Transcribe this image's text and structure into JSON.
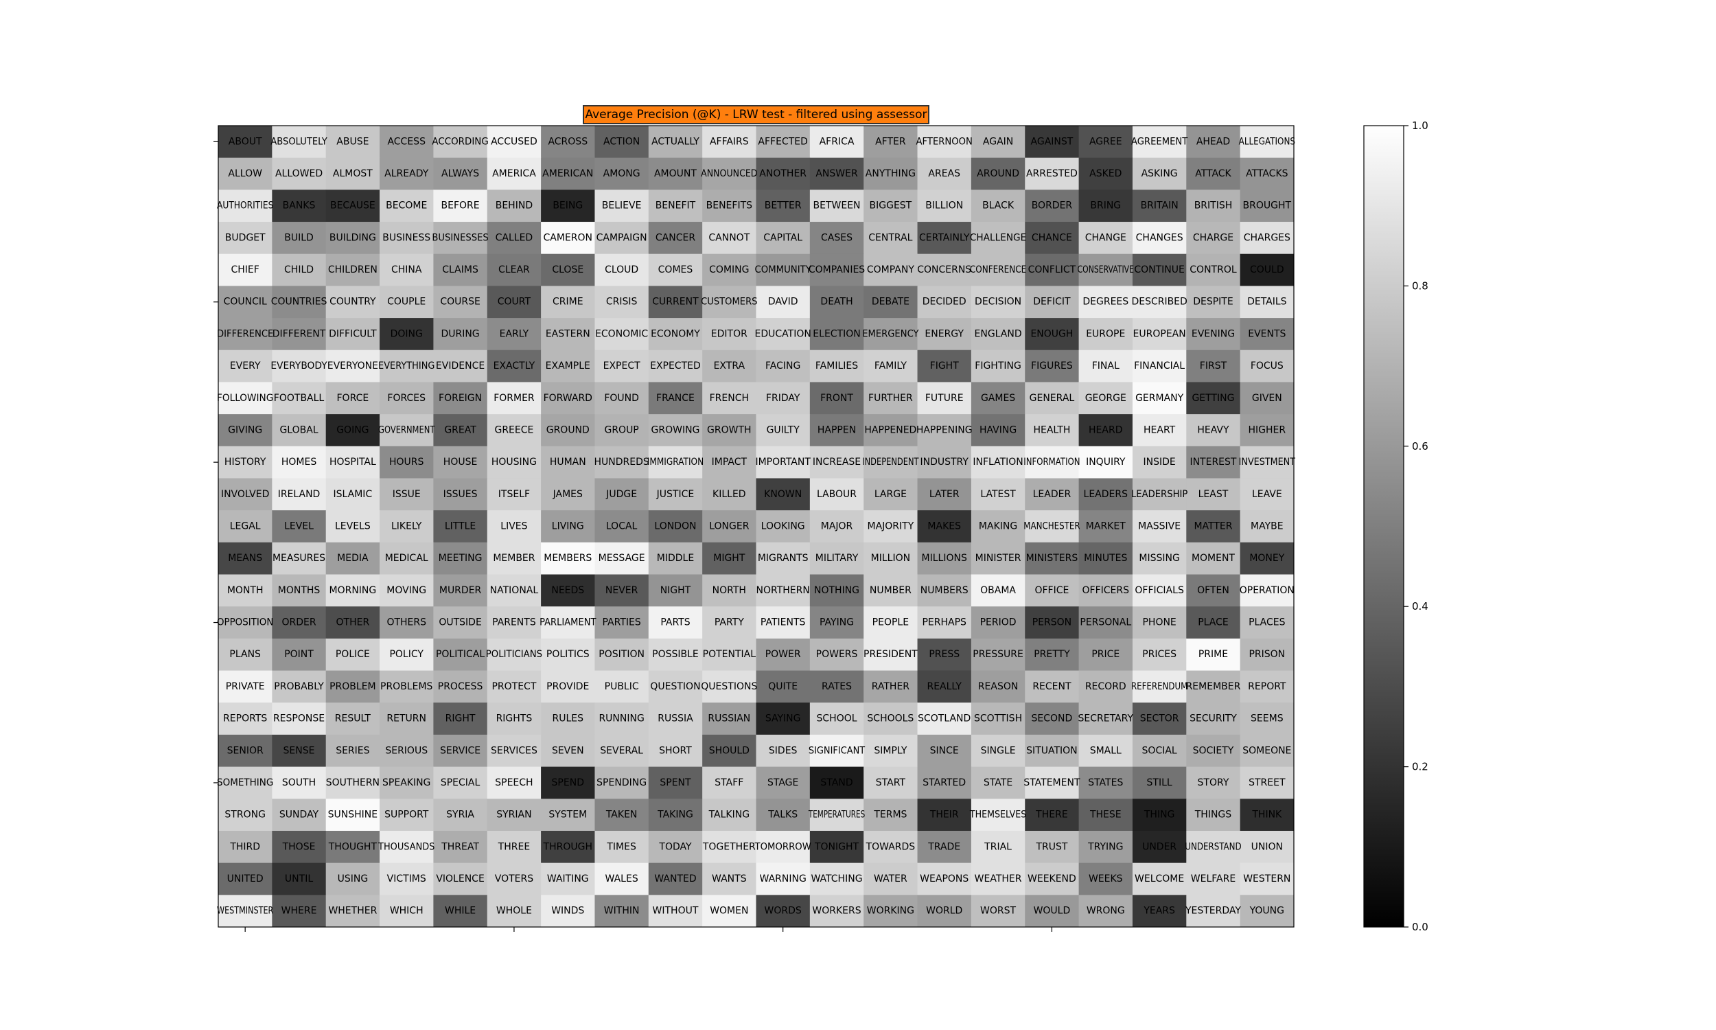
{
  "chart_data": {
    "type": "heatmap",
    "title": "Average Precision (@K) - LRW test - filtered using assessor",
    "title_background": "#ff7f0e",
    "colormap": "gray",
    "vmin": 0.0,
    "vmax": 1.0,
    "colorbar_ticks": [
      0.0,
      0.2,
      0.4,
      0.6,
      0.8,
      1.0
    ],
    "rows": 25,
    "cols": 20,
    "words": [
      "ABOUT",
      "ABSOLUTELY",
      "ABUSE",
      "ACCESS",
      "ACCORDING",
      "ACCUSED",
      "ACROSS",
      "ACTION",
      "ACTUALLY",
      "AFFAIRS",
      "AFFECTED",
      "AFRICA",
      "AFTER",
      "AFTERNOON",
      "AGAIN",
      "AGAINST",
      "AGREE",
      "AGREEMENT",
      "AHEAD",
      "ALLEGATIONS",
      "ALLOW",
      "ALLOWED",
      "ALMOST",
      "ALREADY",
      "ALWAYS",
      "AMERICA",
      "AMERICAN",
      "AMONG",
      "AMOUNT",
      "ANNOUNCED",
      "ANOTHER",
      "ANSWER",
      "ANYTHING",
      "AREAS",
      "AROUND",
      "ARRESTED",
      "ASKED",
      "ASKING",
      "ATTACK",
      "ATTACKS",
      "AUTHORITIES",
      "BANKS",
      "BECAUSE",
      "BECOME",
      "BEFORE",
      "BEHIND",
      "BEING",
      "BELIEVE",
      "BENEFIT",
      "BENEFITS",
      "BETTER",
      "BETWEEN",
      "BIGGEST",
      "BILLION",
      "BLACK",
      "BORDER",
      "BRING",
      "BRITAIN",
      "BRITISH",
      "BROUGHT",
      "BUDGET",
      "BUILD",
      "BUILDING",
      "BUSINESS",
      "BUSINESSES",
      "CALLED",
      "CAMERON",
      "CAMPAIGN",
      "CANCER",
      "CANNOT",
      "CAPITAL",
      "CASES",
      "CENTRAL",
      "CERTAINLY",
      "CHALLENGE",
      "CHANCE",
      "CHANGE",
      "CHANGES",
      "CHARGE",
      "CHARGES",
      "CHIEF",
      "CHILD",
      "CHILDREN",
      "CHINA",
      "CLAIMS",
      "CLEAR",
      "CLOSE",
      "CLOUD",
      "COMES",
      "COMING",
      "COMMUNITY",
      "COMPANIES",
      "COMPANY",
      "CONCERNS",
      "CONFERENCE",
      "CONFLICT",
      "CONSERVATIVE",
      "CONTINUE",
      "CONTROL",
      "COULD",
      "COUNCIL",
      "COUNTRIES",
      "COUNTRY",
      "COUPLE",
      "COURSE",
      "COURT",
      "CRIME",
      "CRISIS",
      "CURRENT",
      "CUSTOMERS",
      "DAVID",
      "DEATH",
      "DEBATE",
      "DECIDED",
      "DECISION",
      "DEFICIT",
      "DEGREES",
      "DESCRIBED",
      "DESPITE",
      "DETAILS",
      "DIFFERENCE",
      "DIFFERENT",
      "DIFFICULT",
      "DOING",
      "DURING",
      "EARLY",
      "EASTERN",
      "ECONOMIC",
      "ECONOMY",
      "EDITOR",
      "EDUCATION",
      "ELECTION",
      "EMERGENCY",
      "ENERGY",
      "ENGLAND",
      "ENOUGH",
      "EUROPE",
      "EUROPEAN",
      "EVENING",
      "EVENTS",
      "EVERY",
      "EVERYBODY",
      "EVERYONE",
      "EVERYTHING",
      "EVIDENCE",
      "EXACTLY",
      "EXAMPLE",
      "EXPECT",
      "EXPECTED",
      "EXTRA",
      "FACING",
      "FAMILIES",
      "FAMILY",
      "FIGHT",
      "FIGHTING",
      "FIGURES",
      "FINAL",
      "FINANCIAL",
      "FIRST",
      "FOCUS",
      "FOLLOWING",
      "FOOTBALL",
      "FORCE",
      "FORCES",
      "FOREIGN",
      "FORMER",
      "FORWARD",
      "FOUND",
      "FRANCE",
      "FRENCH",
      "FRIDAY",
      "FRONT",
      "FURTHER",
      "FUTURE",
      "GAMES",
      "GENERAL",
      "GEORGE",
      "GERMANY",
      "GETTING",
      "GIVEN",
      "GIVING",
      "GLOBAL",
      "GOING",
      "GOVERNMENT",
      "GREAT",
      "GREECE",
      "GROUND",
      "GROUP",
      "GROWING",
      "GROWTH",
      "GUILTY",
      "HAPPEN",
      "HAPPENED",
      "HAPPENING",
      "HAVING",
      "HEALTH",
      "HEARD",
      "HEART",
      "HEAVY",
      "HIGHER",
      "HISTORY",
      "HOMES",
      "HOSPITAL",
      "HOURS",
      "HOUSE",
      "HOUSING",
      "HUMAN",
      "HUNDREDS",
      "IMMIGRATION",
      "IMPACT",
      "IMPORTANT",
      "INCREASE",
      "INDEPENDENT",
      "INDUSTRY",
      "INFLATION",
      "INFORMATION",
      "INQUIRY",
      "INSIDE",
      "INTEREST",
      "INVESTMENT",
      "INVOLVED",
      "IRELAND",
      "ISLAMIC",
      "ISSUE",
      "ISSUES",
      "ITSELF",
      "JAMES",
      "JUDGE",
      "JUSTICE",
      "KILLED",
      "KNOWN",
      "LABOUR",
      "LARGE",
      "LATER",
      "LATEST",
      "LEADER",
      "LEADERS",
      "LEADERSHIP",
      "LEAST",
      "LEAVE",
      "LEGAL",
      "LEVEL",
      "LEVELS",
      "LIKELY",
      "LITTLE",
      "LIVES",
      "LIVING",
      "LOCAL",
      "LONDON",
      "LONGER",
      "LOOKING",
      "MAJOR",
      "MAJORITY",
      "MAKES",
      "MAKING",
      "MANCHESTER",
      "MARKET",
      "MASSIVE",
      "MATTER",
      "MAYBE",
      "MEANS",
      "MEASURES",
      "MEDIA",
      "MEDICAL",
      "MEETING",
      "MEMBER",
      "MEMBERS",
      "MESSAGE",
      "MIDDLE",
      "MIGHT",
      "MIGRANTS",
      "MILITARY",
      "MILLION",
      "MILLIONS",
      "MINISTER",
      "MINISTERS",
      "MINUTES",
      "MISSING",
      "MOMENT",
      "MONEY",
      "MONTH",
      "MONTHS",
      "MORNING",
      "MOVING",
      "MURDER",
      "NATIONAL",
      "NEEDS",
      "NEVER",
      "NIGHT",
      "NORTH",
      "NORTHERN",
      "NOTHING",
      "NUMBER",
      "NUMBERS",
      "OBAMA",
      "OFFICE",
      "OFFICERS",
      "OFFICIALS",
      "OFTEN",
      "OPERATION",
      "OPPOSITION",
      "ORDER",
      "OTHER",
      "OTHERS",
      "OUTSIDE",
      "PARENTS",
      "PARLIAMENT",
      "PARTIES",
      "PARTS",
      "PARTY",
      "PATIENTS",
      "PAYING",
      "PEOPLE",
      "PERHAPS",
      "PERIOD",
      "PERSON",
      "PERSONAL",
      "PHONE",
      "PLACE",
      "PLACES",
      "PLANS",
      "POINT",
      "POLICE",
      "POLICY",
      "POLITICAL",
      "POLITICIANS",
      "POLITICS",
      "POSITION",
      "POSSIBLE",
      "POTENTIAL",
      "POWER",
      "POWERS",
      "PRESIDENT",
      "PRESS",
      "PRESSURE",
      "PRETTY",
      "PRICE",
      "PRICES",
      "PRIME",
      "PRISON",
      "PRIVATE",
      "PROBABLY",
      "PROBLEM",
      "PROBLEMS",
      "PROCESS",
      "PROTECT",
      "PROVIDE",
      "PUBLIC",
      "QUESTION",
      "QUESTIONS",
      "QUITE",
      "RATES",
      "RATHER",
      "REALLY",
      "REASON",
      "RECENT",
      "RECORD",
      "REFERENDUM",
      "REMEMBER",
      "REPORT",
      "REPORTS",
      "RESPONSE",
      "RESULT",
      "RETURN",
      "RIGHT",
      "RIGHTS",
      "RULES",
      "RUNNING",
      "RUSSIA",
      "RUSSIAN",
      "SAYING",
      "SCHOOL",
      "SCHOOLS",
      "SCOTLAND",
      "SCOTTISH",
      "SECOND",
      "SECRETARY",
      "SECTOR",
      "SECURITY",
      "SEEMS",
      "SENIOR",
      "SENSE",
      "SERIES",
      "SERIOUS",
      "SERVICE",
      "SERVICES",
      "SEVEN",
      "SEVERAL",
      "SHORT",
      "SHOULD",
      "SIDES",
      "SIGNIFICANT",
      "SIMPLY",
      "SINCE",
      "SINGLE",
      "SITUATION",
      "SMALL",
      "SOCIAL",
      "SOCIETY",
      "SOMEONE",
      "SOMETHING",
      "SOUTH",
      "SOUTHERN",
      "SPEAKING",
      "SPECIAL",
      "SPEECH",
      "SPEND",
      "SPENDING",
      "SPENT",
      "STAFF",
      "STAGE",
      "STAND",
      "START",
      "STARTED",
      "STATE",
      "STATEMENT",
      "STATES",
      "STILL",
      "STORY",
      "STREET",
      "STRONG",
      "SUNDAY",
      "SUNSHINE",
      "SUPPORT",
      "SYRIA",
      "SYRIAN",
      "SYSTEM",
      "TAKEN",
      "TAKING",
      "TALKING",
      "TALKS",
      "TEMPERATURES",
      "TERMS",
      "THEIR",
      "THEMSELVES",
      "THERE",
      "THESE",
      "THING",
      "THINGS",
      "THINK",
      "THIRD",
      "THOSE",
      "THOUGHT",
      "THOUSANDS",
      "THREAT",
      "THREE",
      "THROUGH",
      "TIMES",
      "TODAY",
      "TOGETHER",
      "TOMORROW",
      "TONIGHT",
      "TOWARDS",
      "TRADE",
      "TRIAL",
      "TRUST",
      "TRYING",
      "UNDER",
      "UNDERSTAND",
      "UNION",
      "UNITED",
      "UNTIL",
      "USING",
      "VICTIMS",
      "VIOLENCE",
      "VOTERS",
      "WAITING",
      "WALES",
      "WANTED",
      "WANTS",
      "WARNING",
      "WATCHING",
      "WATER",
      "WEAPONS",
      "WEATHER",
      "WEEKEND",
      "WEEKS",
      "WELCOME",
      "WELFARE",
      "WESTERN",
      "WESTMINSTER",
      "WHERE",
      "WHETHER",
      "WHICH",
      "WHILE",
      "WHOLE",
      "WINDS",
      "WITHIN",
      "WITHOUT",
      "WOMEN",
      "WORDS",
      "WORKERS",
      "WORKING",
      "WORLD",
      "WORST",
      "WOULD",
      "WRONG",
      "YEARS",
      "YESTERDAY",
      "YOUNG"
    ],
    "values": [
      0.25,
      0.88,
      0.78,
      0.62,
      0.78,
      0.95,
      0.52,
      0.38,
      0.7,
      0.88,
      0.7,
      0.92,
      0.62,
      0.88,
      0.72,
      0.22,
      0.32,
      0.92,
      0.58,
      0.92,
      0.72,
      0.8,
      0.78,
      0.62,
      0.6,
      0.92,
      0.5,
      0.52,
      0.55,
      0.65,
      0.35,
      0.32,
      0.6,
      0.8,
      0.4,
      0.85,
      0.25,
      0.78,
      0.5,
      0.58,
      0.9,
      0.22,
      0.2,
      0.82,
      0.95,
      0.72,
      0.15,
      0.88,
      0.75,
      0.68,
      0.38,
      0.85,
      0.72,
      0.82,
      0.72,
      0.45,
      0.22,
      0.35,
      0.7,
      0.58,
      0.82,
      0.58,
      0.6,
      0.78,
      0.7,
      0.5,
      0.98,
      0.78,
      0.5,
      0.85,
      0.72,
      0.52,
      0.75,
      0.35,
      0.75,
      0.32,
      0.82,
      0.95,
      0.72,
      0.88,
      0.95,
      0.75,
      0.68,
      0.82,
      0.6,
      0.48,
      0.42,
      0.9,
      0.82,
      0.68,
      0.6,
      0.52,
      0.75,
      0.75,
      0.75,
      0.42,
      0.6,
      0.35,
      0.7,
      0.12,
      0.62,
      0.55,
      0.8,
      0.78,
      0.7,
      0.35,
      0.78,
      0.82,
      0.38,
      0.72,
      0.92,
      0.48,
      0.45,
      0.78,
      0.82,
      0.72,
      0.92,
      0.92,
      0.75,
      0.88,
      0.62,
      0.58,
      0.75,
      0.2,
      0.62,
      0.55,
      0.72,
      0.85,
      0.75,
      0.78,
      0.82,
      0.48,
      0.62,
      0.72,
      0.75,
      0.25,
      0.8,
      0.85,
      0.62,
      0.52,
      0.82,
      0.88,
      0.92,
      0.78,
      0.78,
      0.42,
      0.72,
      0.82,
      0.8,
      0.72,
      0.75,
      0.8,
      0.82,
      0.38,
      0.78,
      0.48,
      0.92,
      0.95,
      0.5,
      0.78,
      0.95,
      0.82,
      0.75,
      0.72,
      0.55,
      0.92,
      0.68,
      0.72,
      0.48,
      0.8,
      0.8,
      0.42,
      0.72,
      0.9,
      0.52,
      0.78,
      0.82,
      0.98,
      0.25,
      0.6,
      0.52,
      0.75,
      0.15,
      0.78,
      0.38,
      0.82,
      0.65,
      0.7,
      0.72,
      0.65,
      0.82,
      0.48,
      0.62,
      0.72,
      0.45,
      0.82,
      0.2,
      0.92,
      0.78,
      0.62,
      0.82,
      0.95,
      0.9,
      0.55,
      0.65,
      0.82,
      0.72,
      0.75,
      0.88,
      0.72,
      0.88,
      0.82,
      0.75,
      0.72,
      0.88,
      0.95,
      0.98,
      0.82,
      0.55,
      0.82,
      0.68,
      0.92,
      0.88,
      0.72,
      0.62,
      0.82,
      0.72,
      0.62,
      0.75,
      0.72,
      0.25,
      0.88,
      0.72,
      0.58,
      0.82,
      0.68,
      0.45,
      0.75,
      0.75,
      0.82,
      0.72,
      0.48,
      0.88,
      0.8,
      0.38,
      0.88,
      0.62,
      0.55,
      0.42,
      0.62,
      0.72,
      0.8,
      0.85,
      0.2,
      0.72,
      0.85,
      0.52,
      0.88,
      0.35,
      0.8,
      0.28,
      0.82,
      0.62,
      0.78,
      0.55,
      0.88,
      0.98,
      0.95,
      0.72,
      0.38,
      0.82,
      0.78,
      0.8,
      0.62,
      0.72,
      0.45,
      0.4,
      0.82,
      0.75,
      0.28,
      0.82,
      0.72,
      0.88,
      0.85,
      0.62,
      0.85,
      0.18,
      0.35,
      0.58,
      0.75,
      0.82,
      0.45,
      0.8,
      0.72,
      0.95,
      0.75,
      0.72,
      0.92,
      0.48,
      0.95,
      0.72,
      0.38,
      0.3,
      0.62,
      0.72,
      0.82,
      0.92,
      0.62,
      0.95,
      0.82,
      0.92,
      0.52,
      0.92,
      0.82,
      0.62,
      0.25,
      0.55,
      0.75,
      0.35,
      0.75,
      0.78,
      0.58,
      0.82,
      0.92,
      0.62,
      0.85,
      0.88,
      0.78,
      0.85,
      0.82,
      0.62,
      0.72,
      0.92,
      0.32,
      0.65,
      0.5,
      0.62,
      0.82,
      0.98,
      0.72,
      0.95,
      0.78,
      0.6,
      0.75,
      0.7,
      0.82,
      0.88,
      0.88,
      0.82,
      0.88,
      0.45,
      0.45,
      0.65,
      0.28,
      0.62,
      0.75,
      0.72,
      0.92,
      0.72,
      0.78,
      0.85,
      0.9,
      0.75,
      0.72,
      0.38,
      0.8,
      0.78,
      0.8,
      0.82,
      0.62,
      0.15,
      0.82,
      0.78,
      0.92,
      0.72,
      0.52,
      0.72,
      0.35,
      0.72,
      0.75,
      0.42,
      0.28,
      0.72,
      0.72,
      0.62,
      0.82,
      0.78,
      0.8,
      0.82,
      0.38,
      0.82,
      0.95,
      0.85,
      0.62,
      0.82,
      0.72,
      0.85,
      0.72,
      0.68,
      0.75,
      0.82,
      0.92,
      0.85,
      0.75,
      0.82,
      0.92,
      0.15,
      0.72,
      0.38,
      0.82,
      0.62,
      0.1,
      0.82,
      0.62,
      0.75,
      0.88,
      0.55,
      0.45,
      0.75,
      0.82,
      0.82,
      0.75,
      0.98,
      0.8,
      0.75,
      0.72,
      0.72,
      0.52,
      0.45,
      0.78,
      0.58,
      0.85,
      0.7,
      0.2,
      0.92,
      0.22,
      0.38,
      0.12,
      0.72,
      0.18,
      0.72,
      0.35,
      0.48,
      0.92,
      0.68,
      0.82,
      0.25,
      0.82,
      0.72,
      0.88,
      0.92,
      0.22,
      0.82,
      0.55,
      0.88,
      0.75,
      0.62,
      0.15,
      0.85,
      0.85,
      0.42,
      0.2,
      0.72,
      0.88,
      0.78,
      0.82,
      0.85,
      0.95,
      0.45,
      0.82,
      0.95,
      0.88,
      0.8,
      0.85,
      0.88,
      0.8,
      0.5,
      0.85,
      0.85,
      0.88,
      0.92,
      0.35,
      0.75,
      0.85,
      0.38,
      0.82,
      0.92,
      0.55,
      0.88,
      0.95,
      0.28,
      0.82,
      0.65,
      0.62,
      0.75,
      0.6,
      0.68,
      0.22,
      0.85,
      0.72
    ]
  }
}
